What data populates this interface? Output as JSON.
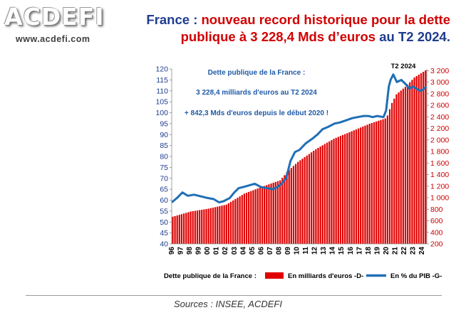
{
  "header": {
    "logo_text": "ACDEFI",
    "logo_url": "www.acdefi.com",
    "headline_part1": "France : ",
    "headline_part2": "nouveau record historique pour la dette publique à 3 228,4 Mds d’euros",
    "headline_part3": " au T2 2024."
  },
  "chart_data": {
    "type": "bar",
    "title": "",
    "annotation_lines": [
      "Dette publique de la France :",
      "3 228,4 milliards d'euros au T2 2024",
      "+ 842,3 Mds d'euros depuis le début 2020 !"
    ],
    "peak_label": "T2 2024",
    "x_tick_labels": [
      "96",
      "97",
      "98",
      "99",
      "00",
      "01",
      "02",
      "03",
      "04",
      "05",
      "06",
      "07",
      "08",
      "09",
      "10",
      "11",
      "12",
      "13",
      "14",
      "15",
      "16",
      "17",
      "18",
      "19",
      "20",
      "21",
      "22",
      "23",
      "24"
    ],
    "y_left": {
      "ticks": [
        40,
        45,
        50,
        55,
        60,
        65,
        70,
        75,
        80,
        85,
        90,
        95,
        100,
        105,
        110,
        115,
        120
      ],
      "range": [
        40,
        120
      ]
    },
    "y_right": {
      "ticks": [
        "200",
        "400",
        "600",
        "800",
        "1 000",
        "1 200",
        "1 400",
        "1 600",
        "1 800",
        "2 000",
        "2 200",
        "2 400",
        "2 600",
        "2 800",
        "3 000",
        "3 200"
      ],
      "range": [
        200,
        3228.4
      ]
    },
    "series": [
      {
        "name": "En milliards d'euros -D-",
        "kind": "bar",
        "axis": "right",
        "color": "#e00000",
        "anchors": [
          [
            1996,
            670
          ],
          [
            1998,
            760
          ],
          [
            2000,
            810
          ],
          [
            2002,
            880
          ],
          [
            2004,
            1070
          ],
          [
            2006,
            1190
          ],
          [
            2008,
            1300
          ],
          [
            2009,
            1480
          ],
          [
            2010,
            1620
          ],
          [
            2012,
            1840
          ],
          [
            2014,
            2020
          ],
          [
            2016,
            2150
          ],
          [
            2018,
            2280
          ],
          [
            2019.9,
            2380
          ],
          [
            2020.5,
            2640
          ],
          [
            2021,
            2790
          ],
          [
            2022,
            2920
          ],
          [
            2023,
            3080
          ],
          [
            2024.5,
            3228.4
          ]
        ]
      },
      {
        "name": "En % du PIB -G-",
        "kind": "line",
        "axis": "left",
        "color": "#1f6fb5",
        "anchors": [
          [
            1996,
            59
          ],
          [
            1996.6,
            61
          ],
          [
            1997.2,
            63.5
          ],
          [
            1997.8,
            62
          ],
          [
            1998.5,
            62.5
          ],
          [
            1999,
            62
          ],
          [
            2000,
            61
          ],
          [
            2000.7,
            60.5
          ],
          [
            2001.3,
            59
          ],
          [
            2001.8,
            59.5
          ],
          [
            2002.5,
            61
          ],
          [
            2003,
            63.5
          ],
          [
            2003.5,
            65.5
          ],
          [
            2004,
            66
          ],
          [
            2004.7,
            66.8
          ],
          [
            2005.3,
            67.5
          ],
          [
            2006,
            66
          ],
          [
            2006.7,
            65.5
          ],
          [
            2007.3,
            65
          ],
          [
            2007.8,
            66
          ],
          [
            2008.3,
            67.5
          ],
          [
            2008.8,
            70
          ],
          [
            2009.3,
            78
          ],
          [
            2009.8,
            82
          ],
          [
            2010.3,
            83
          ],
          [
            2011,
            86
          ],
          [
            2011.7,
            88
          ],
          [
            2012.3,
            90
          ],
          [
            2012.9,
            92.5
          ],
          [
            2013.5,
            93.5
          ],
          [
            2014.2,
            95
          ],
          [
            2014.8,
            95.5
          ],
          [
            2015.5,
            96.5
          ],
          [
            2016.2,
            97.5
          ],
          [
            2016.8,
            98
          ],
          [
            2017.5,
            98.5
          ],
          [
            2018,
            98.5
          ],
          [
            2018.5,
            98
          ],
          [
            2019,
            98.5
          ],
          [
            2019.7,
            98
          ],
          [
            2020,
            101
          ],
          [
            2020.3,
            112
          ],
          [
            2020.5,
            115
          ],
          [
            2020.8,
            117.5
          ],
          [
            2021.2,
            114
          ],
          [
            2021.7,
            115
          ],
          [
            2022.2,
            113
          ],
          [
            2022.6,
            111
          ],
          [
            2023,
            112
          ],
          [
            2023.4,
            111
          ],
          [
            2023.8,
            110
          ],
          [
            2024.1,
            110.5
          ],
          [
            2024.5,
            112
          ]
        ]
      }
    ],
    "legend": {
      "title": "Dette publique de la France :",
      "bar_label": "En milliards d'euros -D-",
      "line_label": "En % du PIB -G-"
    },
    "grid": false,
    "legend_position": "bottom"
  },
  "footer": {
    "sources": "Sources : INSEE, ACDEFI"
  }
}
